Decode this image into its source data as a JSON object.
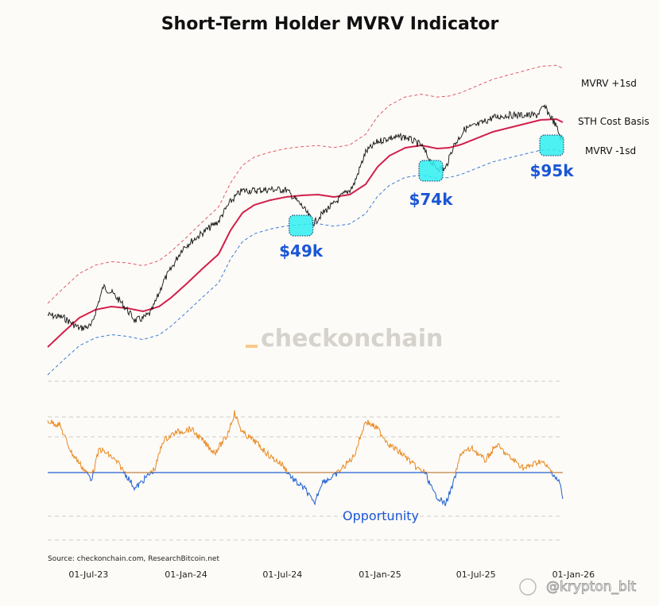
{
  "chart_data": {
    "type": "line",
    "title": "Short-Term Holder MVRV Indicator",
    "source": "Source: checkonchain.com, ResearchBitcoin.net",
    "watermark": "checkonchain",
    "handle": "@krypton_bit",
    "x_ticks": [
      "01-Jul-23",
      "01-Jan-24",
      "01-Jul-24",
      "01-Jan-25",
      "01-Jul-25",
      "01-Jan-26"
    ],
    "series": [
      {
        "name": "MVRV +1sd",
        "color": "#e05a6a"
      },
      {
        "name": "STH Cost Basis",
        "color": "#d1204b"
      },
      {
        "name": "MVRV -1sd",
        "color": "#3b7ddb"
      }
    ],
    "annotations": [
      {
        "label": "$49k",
        "date": "2024-08-05"
      },
      {
        "label": "$74k",
        "date": "2025-04-07"
      },
      {
        "label": "$95k",
        "date": "2025-11-21"
      }
    ],
    "oscillator": {
      "label": "Opportunity",
      "above_color": "#e8871e",
      "below_color": "#1f5fd1"
    }
  }
}
